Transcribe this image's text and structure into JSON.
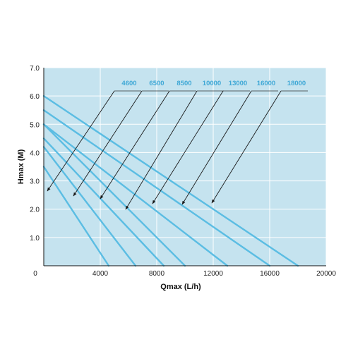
{
  "chart_data": {
    "type": "line",
    "title": "",
    "xlabel": "Qmax (L/h)",
    "ylabel": "Hmax (M)",
    "xlim": [
      0,
      20000
    ],
    "ylim": [
      0,
      7
    ],
    "x_ticks": [
      "0",
      "4000",
      "8000",
      "12000",
      "16000",
      "20000"
    ],
    "x_tick_values": [
      0,
      4000,
      8000,
      12000,
      16000,
      20000
    ],
    "y_ticks": [
      "1.0",
      "2.0",
      "3.0",
      "4.0",
      "5.0",
      "6.0",
      "7.0"
    ],
    "y_tick_values": [
      1,
      2,
      3,
      4,
      5,
      6,
      7
    ],
    "grid": true,
    "colors": {
      "plot_background": "#c5e3ef",
      "grid": "#ffffff",
      "line": "#5bbde3",
      "label": "#3fa8d6",
      "arrow": "#1a1a1a"
    },
    "series": [
      {
        "name": "4600",
        "x": [
          0,
          4600
        ],
        "y": [
          3.5,
          0
        ]
      },
      {
        "name": "6500",
        "x": [
          0,
          6500
        ],
        "y": [
          4.2,
          0
        ]
      },
      {
        "name": "8500",
        "x": [
          0,
          8500
        ],
        "y": [
          4.5,
          0
        ]
      },
      {
        "name": "10000",
        "x": [
          0,
          10000
        ],
        "y": [
          5.0,
          0
        ]
      },
      {
        "name": "13000",
        "x": [
          0,
          13000
        ],
        "y": [
          5.0,
          0
        ]
      },
      {
        "name": "16000",
        "x": [
          0,
          16000
        ],
        "y": [
          5.5,
          0
        ]
      },
      {
        "name": "18000",
        "x": [
          0,
          18000
        ],
        "y": [
          6.0,
          0
        ]
      }
    ]
  }
}
